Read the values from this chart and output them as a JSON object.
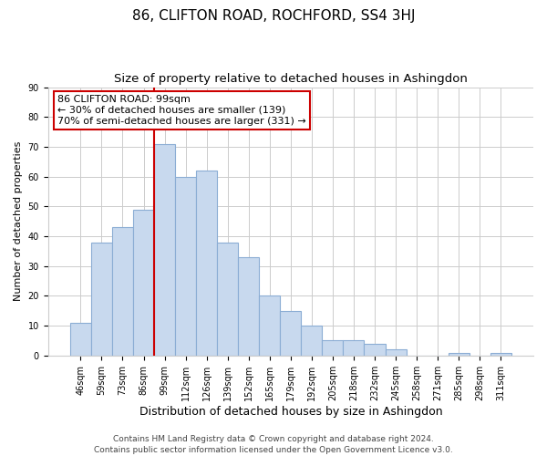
{
  "title": "86, CLIFTON ROAD, ROCHFORD, SS4 3HJ",
  "subtitle": "Size of property relative to detached houses in Ashingdon",
  "xlabel": "Distribution of detached houses by size in Ashingdon",
  "ylabel": "Number of detached properties",
  "categories": [
    "46sqm",
    "59sqm",
    "73sqm",
    "86sqm",
    "99sqm",
    "112sqm",
    "126sqm",
    "139sqm",
    "152sqm",
    "165sqm",
    "179sqm",
    "192sqm",
    "205sqm",
    "218sqm",
    "232sqm",
    "245sqm",
    "258sqm",
    "271sqm",
    "285sqm",
    "298sqm",
    "311sqm"
  ],
  "values": [
    11,
    38,
    43,
    49,
    71,
    60,
    62,
    38,
    33,
    20,
    15,
    10,
    5,
    5,
    4,
    2,
    0,
    0,
    1,
    0,
    1
  ],
  "bar_color": "#c8d9ee",
  "bar_edge_color": "#8badd4",
  "vline_color": "#cc0000",
  "annotation_text": "86 CLIFTON ROAD: 99sqm\n← 30% of detached houses are smaller (139)\n70% of semi-detached houses are larger (331) →",
  "annotation_box_color": "#ffffff",
  "annotation_box_edge": "#cc0000",
  "ylim": [
    0,
    90
  ],
  "yticks": [
    0,
    10,
    20,
    30,
    40,
    50,
    60,
    70,
    80,
    90
  ],
  "footer1": "Contains HM Land Registry data © Crown copyright and database right 2024.",
  "footer2": "Contains public sector information licensed under the Open Government Licence v3.0.",
  "title_fontsize": 11,
  "subtitle_fontsize": 9.5,
  "xlabel_fontsize": 9,
  "ylabel_fontsize": 8,
  "tick_fontsize": 7,
  "annotation_fontsize": 8,
  "footer_fontsize": 6.5,
  "background_color": "#ffffff",
  "grid_color": "#cccccc"
}
